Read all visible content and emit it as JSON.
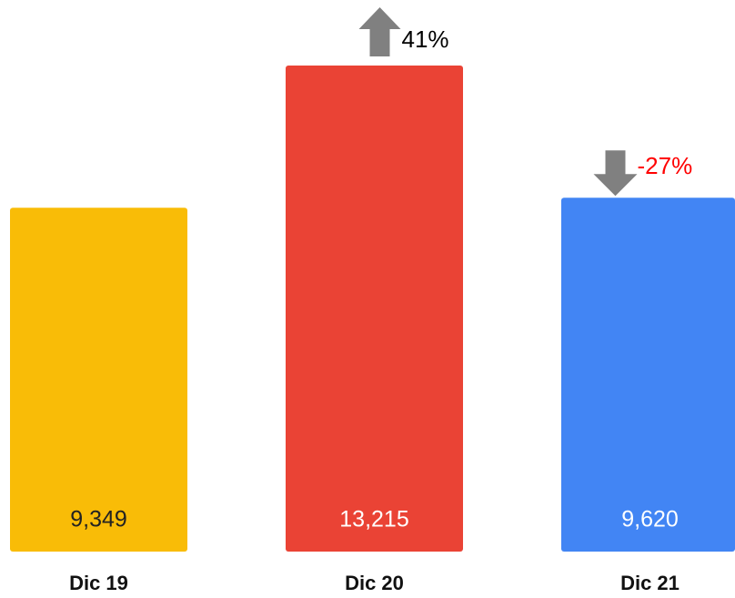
{
  "chart_data": {
    "type": "bar",
    "categories": [
      "Dic 19",
      "Dic 20",
      "Dic 21"
    ],
    "values": [
      9349,
      13215,
      9620
    ],
    "value_labels": [
      "9,349",
      "13,215",
      "9,620"
    ],
    "colors": [
      "#f9bc07",
      "#ea4335",
      "#4285f4"
    ],
    "value_label_colors": [
      "#222222",
      "#ffffff",
      "#ffffff"
    ],
    "change_values": [
      null,
      41,
      -27
    ],
    "change_labels": [
      null,
      "41%",
      "-27%"
    ],
    "change_label_colors": [
      null,
      "#000000",
      "#ff0000"
    ],
    "arrow_color": "#808080"
  }
}
